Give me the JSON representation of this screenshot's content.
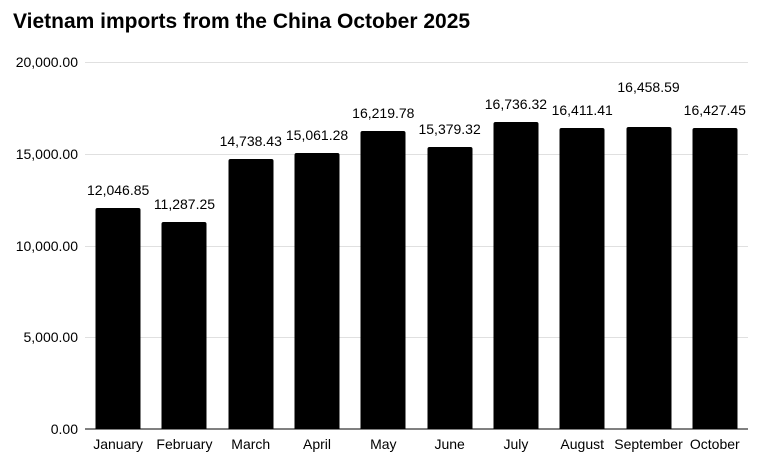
{
  "chart_data": {
    "type": "bar",
    "title": "Vietnam imports from the China October 2025",
    "categories": [
      "January",
      "February",
      "March",
      "April",
      "May",
      "June",
      "July",
      "August",
      "September",
      "October"
    ],
    "values": [
      12046.85,
      11287.25,
      14738.43,
      15061.28,
      16219.78,
      15379.32,
      16736.32,
      16411.41,
      16458.59,
      16427.45
    ],
    "data_labels": [
      "12,046.85",
      "11,287.25",
      "14,738.43",
      "15,061.28",
      "16,219.78",
      "15,379.32",
      "16,736.32",
      "16,411.41",
      "16,458.59",
      "16,427.45"
    ],
    "y_ticks": [
      "0.00",
      "5,000.00",
      "10,000.00",
      "15,000.00",
      "20,000.00"
    ],
    "ylim": [
      0,
      20000
    ],
    "y_tick_step": 5000,
    "grid": true,
    "legend": "none",
    "label_offsets": [
      0,
      0,
      0,
      0,
      0,
      0,
      0,
      0,
      22,
      0
    ],
    "colors": {
      "bar": "#000000",
      "gridline": "#e0e0e0",
      "baseline": "#808080",
      "text": "#000000",
      "background": "#ffffff"
    }
  }
}
